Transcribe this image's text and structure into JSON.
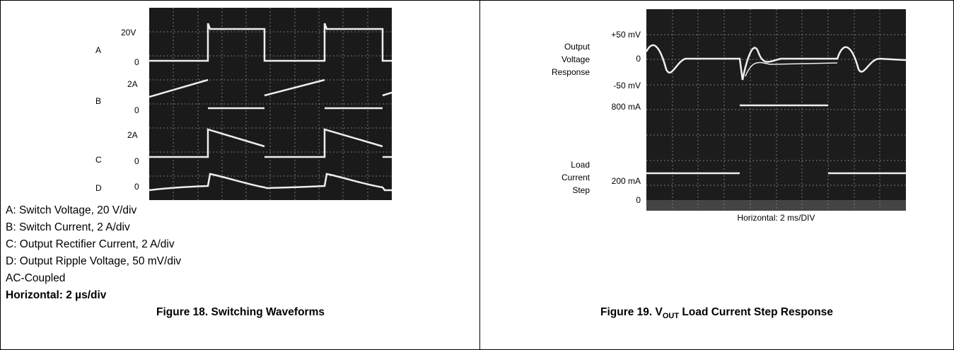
{
  "figure_18": {
    "scope_labels": [
      "20V",
      "A",
      "0",
      "2A",
      "B",
      "0",
      "2A",
      "C",
      "0",
      "D",
      "0"
    ],
    "legend": [
      "A: Switch Voltage, 20 V/div",
      "B: Switch Current, 2 A/div",
      "C: Output Rectifier Current, 2 A/div",
      "D: Output Ripple Voltage, 50 mV/div",
      "AC-Coupled"
    ],
    "horizontal": "Horizontal: 2 µs/div",
    "caption": "Figure 18. Switching Waveforms"
  },
  "figure_19": {
    "scale_labels": [
      "+50 mV",
      "0",
      "-50 mV",
      "800 mA",
      "200 mA",
      "0"
    ],
    "trace_labels": {
      "output": [
        "Output",
        "Voltage",
        "Response"
      ],
      "load": [
        "Load",
        "Current",
        "Step"
      ]
    },
    "horizontal": "Horizontal: 2 ms/DIV",
    "caption": {
      "before": "Figure 19. V",
      "subscript": "OUT",
      "after": " Load Current Step Response"
    }
  }
}
